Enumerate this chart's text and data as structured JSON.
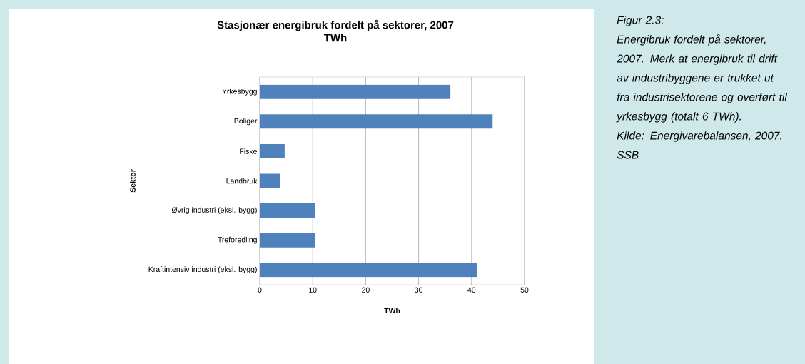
{
  "chart_data": {
    "type": "bar",
    "orientation": "horizontal",
    "title": "Stasjonær energibruk fordelt på sektorer, 2007",
    "subtitle": "TWh",
    "xlabel": "TWh",
    "ylabel": "Sektor",
    "categories": [
      "Yrkesbygg",
      "Boliger",
      "Fiske",
      "Landbruk",
      "Øvrig industri (eksl. bygg)",
      "Treforedling",
      "Kraftintensiv industri (eksl. bygg)"
    ],
    "values": [
      36.0,
      44.0,
      4.7,
      3.9,
      10.5,
      10.5,
      41.0
    ],
    "color": "#4f81bd",
    "xlim": [
      0,
      50
    ],
    "xticks": [
      0,
      10,
      20,
      30,
      40,
      50
    ],
    "grid": "x",
    "annotations": [
      "Figur 2.3:",
      "Energibruk fordelt på sektorer, 2007. Merk at energibruk til drift av industribyggene er trukket ut fra industrisektorene og overført til yrkesbygg (totalt 6 TWh).",
      "Kilde: Energivarebalansen, 2007. SSB"
    ]
  }
}
